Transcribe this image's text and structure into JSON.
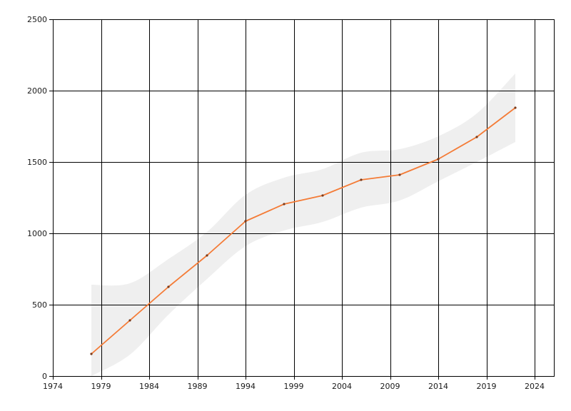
{
  "chart_data": {
    "type": "line",
    "title": "",
    "xlabel": "",
    "ylabel": "",
    "xlim": [
      1974,
      2026
    ],
    "ylim": [
      0,
      2500
    ],
    "x_ticks": [
      1974,
      1979,
      1984,
      1989,
      1994,
      1999,
      2004,
      2009,
      2014,
      2019,
      2024
    ],
    "y_ticks": [
      0,
      500,
      1000,
      1500,
      2000,
      2500
    ],
    "grid": true,
    "legend": "none",
    "series": [
      {
        "color": "#f47b36",
        "band_color": "#efefef",
        "points": [
          {
            "x": 1978,
            "y": 155,
            "lower": 0,
            "upper": 640
          },
          {
            "x": 1982,
            "y": 390,
            "lower": 150,
            "upper": 650
          },
          {
            "x": 1986,
            "y": 625,
            "lower": 430,
            "upper": 820
          },
          {
            "x": 1990,
            "y": 845,
            "lower": 680,
            "upper": 1010
          },
          {
            "x": 1994,
            "y": 1085,
            "lower": 910,
            "upper": 1270
          },
          {
            "x": 1998,
            "y": 1205,
            "lower": 1020,
            "upper": 1390
          },
          {
            "x": 2002,
            "y": 1265,
            "lower": 1080,
            "upper": 1450
          },
          {
            "x": 2006,
            "y": 1375,
            "lower": 1180,
            "upper": 1565
          },
          {
            "x": 2010,
            "y": 1410,
            "lower": 1230,
            "upper": 1590
          },
          {
            "x": 2014,
            "y": 1520,
            "lower": 1365,
            "upper": 1680
          },
          {
            "x": 2018,
            "y": 1675,
            "lower": 1500,
            "upper": 1840
          },
          {
            "x": 2022,
            "y": 1880,
            "lower": 1640,
            "upper": 2120
          }
        ]
      }
    ]
  }
}
